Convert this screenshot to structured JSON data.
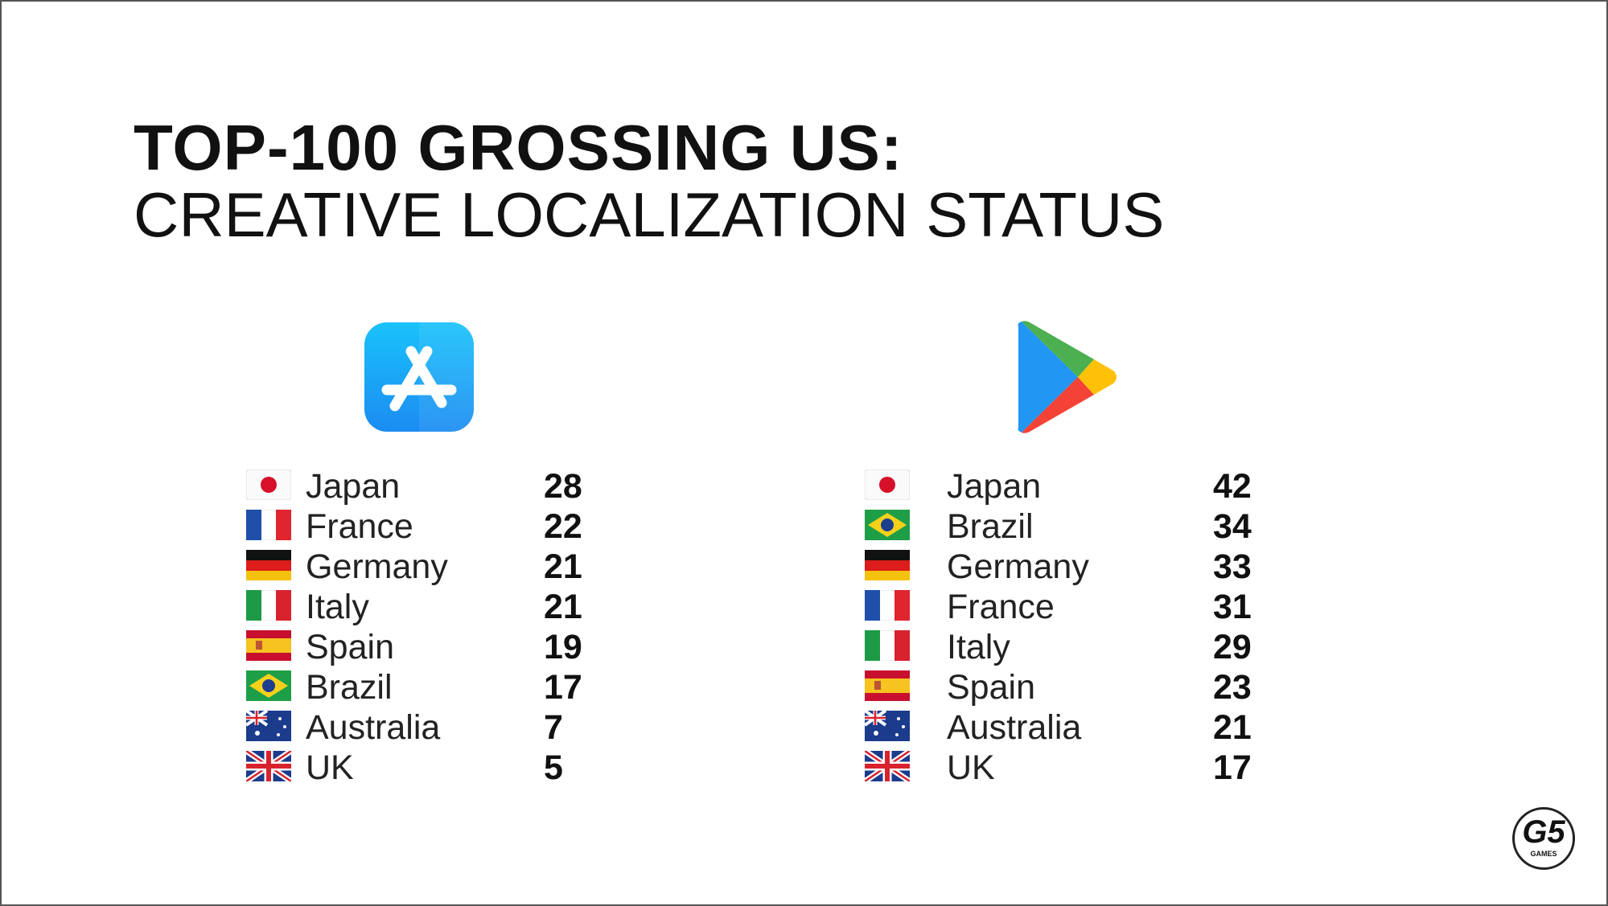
{
  "title": {
    "line1": "TOP-100 GROSSING US:",
    "line2": "CREATIVE LOCALIZATION STATUS"
  },
  "lists": [
    {
      "rows": [
        {
          "country": "Japan",
          "count": "28"
        },
        {
          "country": "France",
          "count": "22"
        },
        {
          "country": "Germany",
          "count": "21"
        },
        {
          "country": "Italy",
          "count": "21"
        },
        {
          "country": "Spain",
          "count": "19"
        },
        {
          "country": "Brazil",
          "count": "17"
        },
        {
          "country": "Australia",
          "count": "7"
        },
        {
          "country": "UK",
          "count": "5"
        }
      ]
    },
    {
      "rows": [
        {
          "country": "Japan",
          "count": "42"
        },
        {
          "country": "Brazil",
          "count": "34"
        },
        {
          "country": "Germany",
          "count": "33"
        },
        {
          "country": "France",
          "count": "31"
        },
        {
          "country": "Italy",
          "count": "29"
        },
        {
          "country": "Spain",
          "count": "23"
        },
        {
          "country": "Australia",
          "count": "21"
        },
        {
          "country": "UK",
          "count": "17"
        }
      ]
    }
  ],
  "logo": {
    "mark": "G5",
    "text": "GAMES"
  }
}
